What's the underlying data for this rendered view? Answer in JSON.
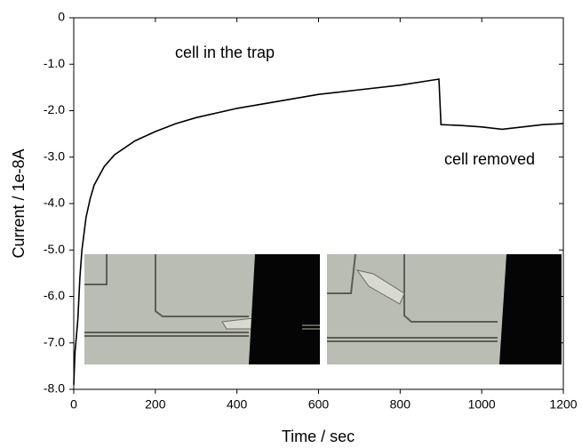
{
  "chart_data": {
    "type": "line",
    "xlabel": "Time / sec",
    "ylabel": "Current / 1e-8A",
    "annotations": [
      "cell in the trap",
      "cell removed"
    ],
    "color": "#000000",
    "x": [
      0,
      3,
      6,
      10,
      15,
      20,
      30,
      40,
      50,
      75,
      100,
      150,
      200,
      250,
      300,
      400,
      500,
      600,
      700,
      800,
      895,
      900,
      950,
      1000,
      1050,
      1100,
      1150,
      1200
    ],
    "values": [
      -7.9,
      -7.2,
      -6.9,
      -6.5,
      -5.6,
      -5.0,
      -4.3,
      -3.9,
      -3.6,
      -3.2,
      -2.95,
      -2.65,
      -2.45,
      -2.28,
      -2.15,
      -1.95,
      -1.8,
      -1.65,
      -1.55,
      -1.45,
      -1.32,
      -2.3,
      -2.32,
      -2.35,
      -2.4,
      -2.35,
      -2.3,
      -2.28
    ],
    "xlim": [
      0,
      1200
    ],
    "xticks": [
      0,
      200,
      400,
      600,
      800,
      1000,
      1200
    ],
    "ylim": [
      -8,
      0
    ],
    "yticks": [
      0,
      {
        "value": -1,
        "label": "-1.0"
      },
      {
        "value": -2,
        "label": "-2.0"
      },
      {
        "value": -3,
        "label": "-3.0"
      },
      {
        "value": -4,
        "label": "-4.0"
      },
      {
        "value": -5,
        "label": "-5.0"
      },
      {
        "value": -6,
        "label": "-6.0"
      },
      {
        "value": -7,
        "label": "-7.0"
      },
      {
        "value": -8,
        "label": "-8.0"
      }
    ]
  }
}
